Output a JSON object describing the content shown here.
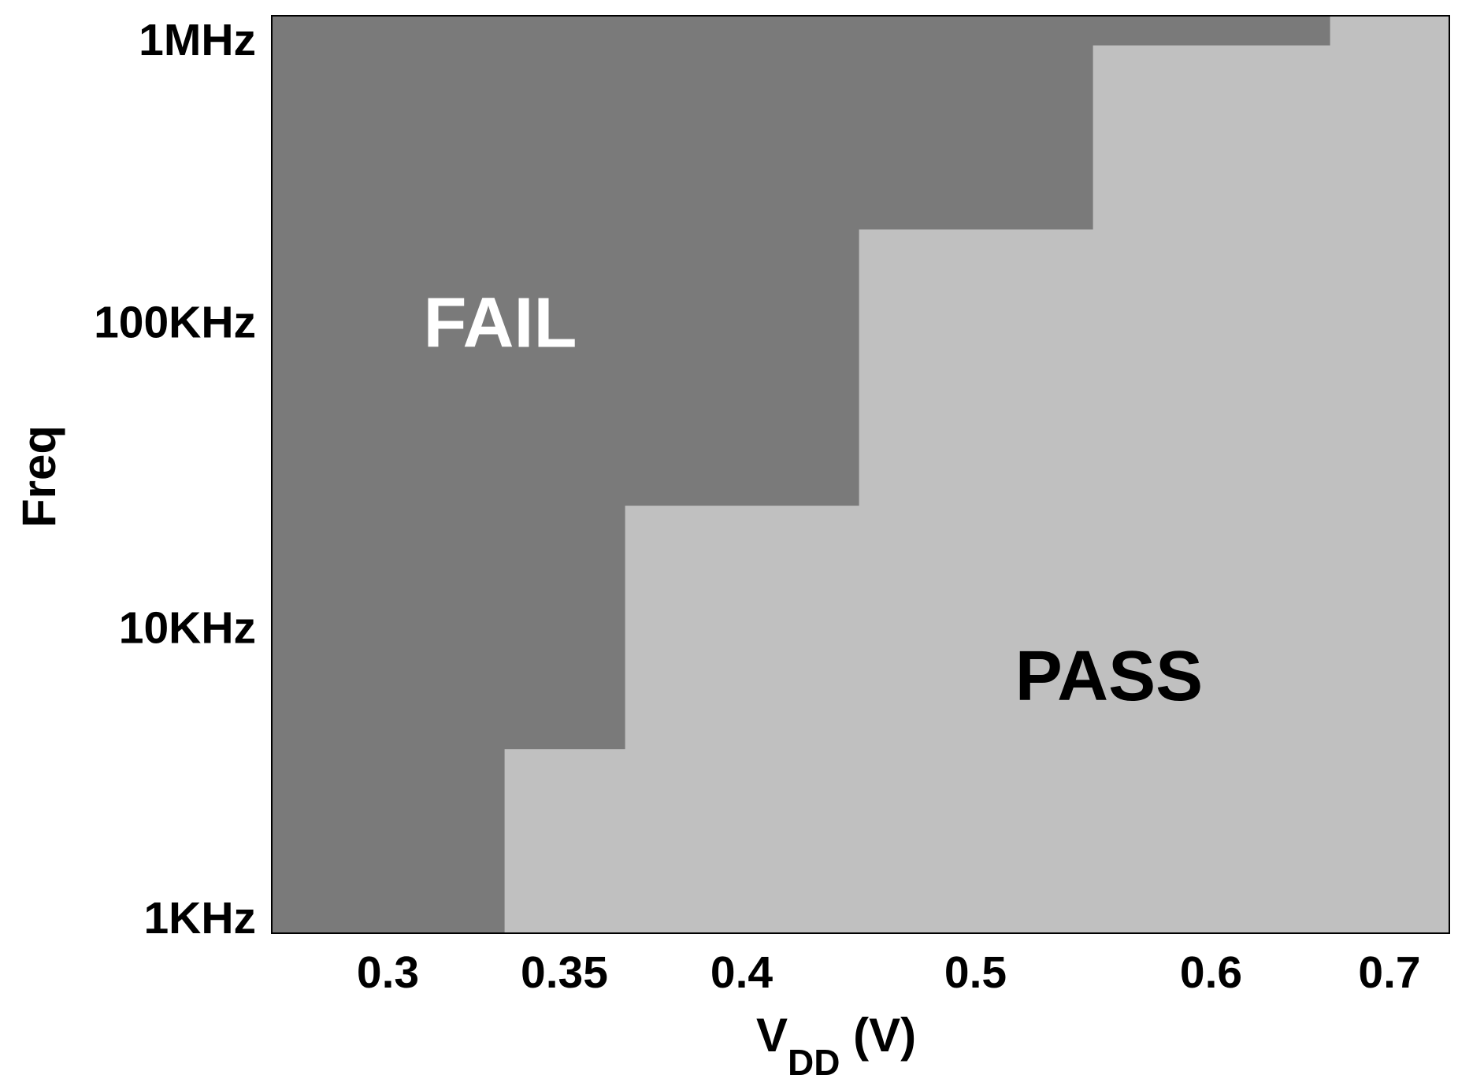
{
  "chart_data": {
    "type": "heatmap",
    "title": "",
    "xlabel": "V",
    "xlabel_subscript": "DD",
    "xlabel_unit": " (V)",
    "ylabel": "Freq",
    "x_categories": [
      "0.3",
      "0.35",
      "0.4",
      "0.5",
      "0.6",
      "0.7"
    ],
    "y_ticks": [
      {
        "label": "1KHz",
        "value": 1000
      },
      {
        "label": "10KHz",
        "value": 10000
      },
      {
        "label": "100KHz",
        "value": 100000
      },
      {
        "label": "1MHz",
        "value": 1000000
      }
    ],
    "y_scale": "log",
    "ylim": [
      1000,
      1000000
    ],
    "grid": false,
    "series": [
      {
        "name": "PASS",
        "color": "#c0c0c0"
      },
      {
        "name": "FAIL",
        "color": "#7a7a7a"
      }
    ],
    "pass_threshold_freq": [
      1000,
      4000,
      25000,
      200000,
      800000,
      1000000
    ],
    "region_labels": [
      {
        "text": "FAIL",
        "color": "#ffffff",
        "x_category": "0.35",
        "y_value": 100000
      },
      {
        "text": "PASS",
        "color": "#000000",
        "x_category": "0.5",
        "y_value": 7000
      }
    ]
  }
}
